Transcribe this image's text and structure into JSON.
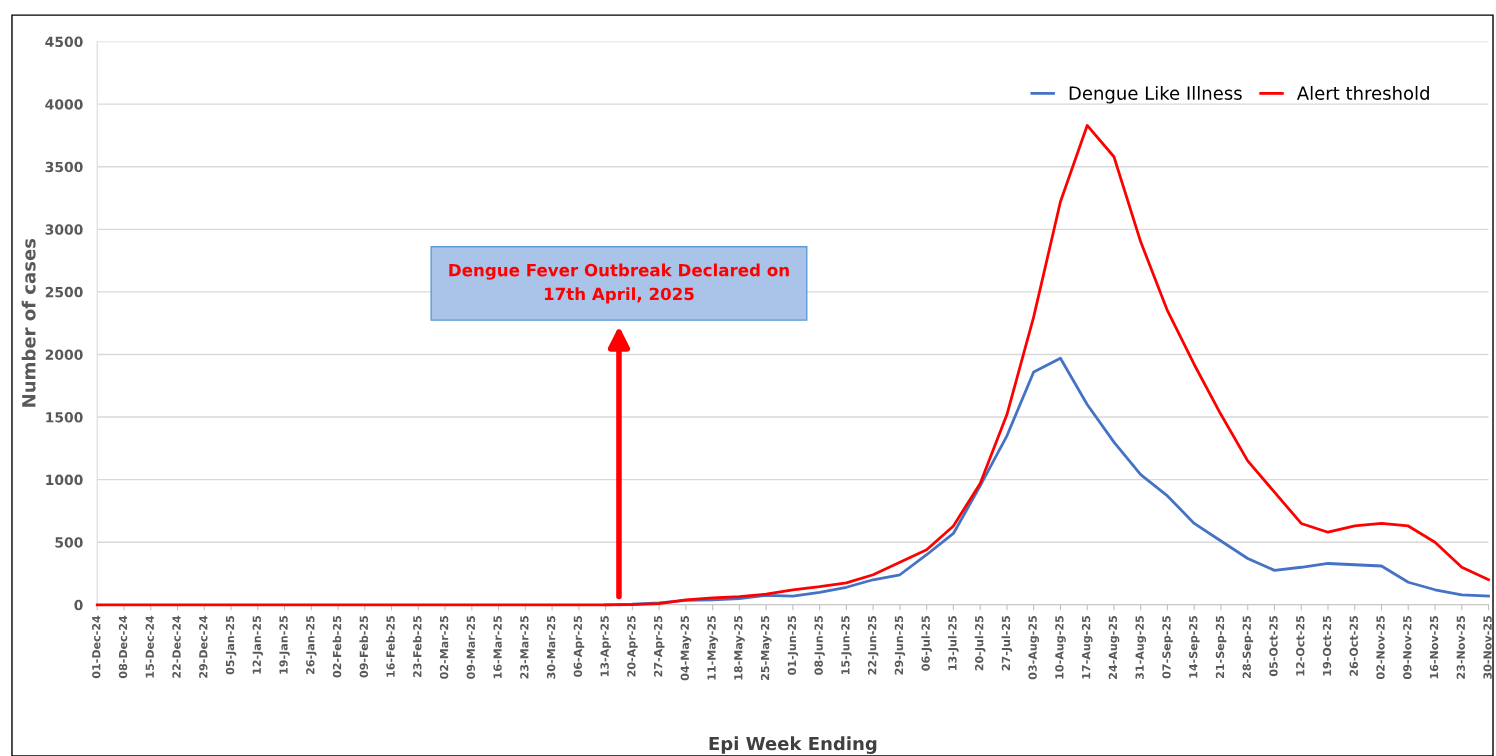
{
  "chart_data": {
    "type": "line",
    "xlabel": "Epi Week Ending",
    "ylabel": "Number of cases",
    "categories": [
      "01-Dec-24",
      "08-Dec-24",
      "15-Dec-24",
      "22-Dec-24",
      "29-Dec-24",
      "05-Jan-25",
      "12-Jan-25",
      "19-Jan-25",
      "26-Jan-25",
      "02-Feb-25",
      "09-Feb-25",
      "16-Feb-25",
      "23-Feb-25",
      "02-Mar-25",
      "09-Mar-25",
      "16-Mar-25",
      "23-Mar-25",
      "30-Mar-25",
      "06-Apr-25",
      "13-Apr-25",
      "20-Apr-25",
      "27-Apr-25",
      "04-May-25",
      "11-May-25",
      "18-May-25",
      "25-May-25",
      "01-Jun-25",
      "08-Jun-25",
      "15-Jun-25",
      "22-Jun-25",
      "29-Jun-25",
      "06-Jul-25",
      "13-Jul-25",
      "20-Jul-25",
      "27-Jul-25",
      "03-Aug-25",
      "10-Aug-25",
      "17-Aug-25",
      "24-Aug-25",
      "31-Aug-25",
      "07-Sep-25",
      "14-Sep-25",
      "21-Sep-25",
      "28-Sep-25",
      "05-Oct-25",
      "12-Oct-25",
      "19-Oct-25",
      "26-Oct-25",
      "02-Nov-25",
      "09-Nov-25",
      "16-Nov-25",
      "23-Nov-25",
      "30-Nov-25"
    ],
    "series": [
      {
        "name": "Dengue Like Illness",
        "color": "#4472c4",
        "values": [
          null,
          null,
          null,
          null,
          null,
          null,
          null,
          null,
          null,
          null,
          null,
          null,
          null,
          null,
          null,
          null,
          null,
          null,
          null,
          0,
          5,
          15,
          35,
          40,
          50,
          75,
          70,
          100,
          140,
          200,
          240,
          400,
          570,
          950,
          1350,
          1860,
          1970,
          1600,
          1300,
          1040,
          870,
          650,
          510,
          370,
          275,
          300,
          330,
          320,
          310,
          180,
          120,
          80,
          70
        ]
      },
      {
        "name": "Alert threshold",
        "color": "#ff0000",
        "values": [
          0,
          0,
          0,
          0,
          0,
          0,
          0,
          0,
          0,
          0,
          0,
          0,
          0,
          0,
          0,
          0,
          0,
          0,
          0,
          0,
          2,
          10,
          40,
          55,
          65,
          85,
          120,
          145,
          175,
          240,
          340,
          440,
          630,
          970,
          1520,
          2300,
          3220,
          3830,
          3580,
          2900,
          2350,
          1920,
          1520,
          1150,
          900,
          650,
          580,
          630,
          650,
          630,
          500,
          300,
          200
        ]
      }
    ],
    "ylim": [
      0,
      4500
    ],
    "yticks": [
      0,
      500,
      1000,
      1500,
      2000,
      2500,
      3000,
      3500,
      4000,
      4500
    ],
    "grid": "y",
    "legend": "top right",
    "marker": "none",
    "line_style": "solid",
    "annotations": [
      "Dengue Fever Outbreak Declared on\n17th April, 2025"
    ]
  }
}
